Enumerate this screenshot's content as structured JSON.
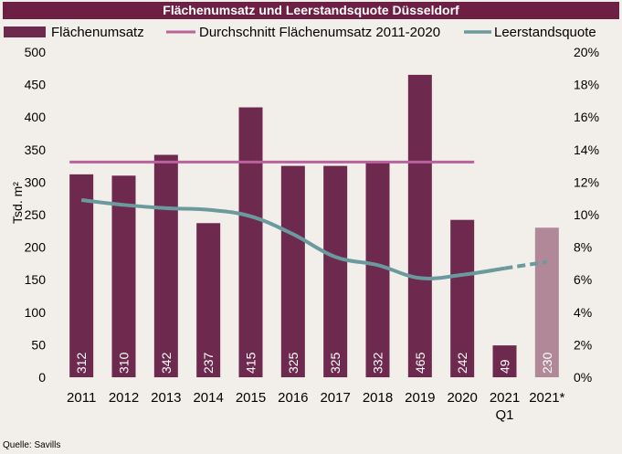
{
  "source": "Quelle: Savills",
  "colors": {
    "bar": "#6e2a4e",
    "bar_forecast": "#b08898",
    "average_line": "#b9629d",
    "vacancy_line": "#6b9a9e",
    "title_bg": "#6e1f44"
  },
  "chart_data": {
    "type": "bar",
    "title": "Flächenumsatz und Leerstandsquote Düsseldorf",
    "categories": [
      "2011",
      "2012",
      "2013",
      "2014",
      "2015",
      "2016",
      "2017",
      "2018",
      "2019",
      "2020",
      "2021 Q1",
      "2021*"
    ],
    "ylabel": "Tsd. m²",
    "ylim": [
      0,
      500
    ],
    "y_ticks": [
      0,
      50,
      100,
      150,
      200,
      250,
      300,
      350,
      400,
      450,
      500
    ],
    "y2lim": [
      0,
      20
    ],
    "y2_ticks": [
      "0%",
      "2%",
      "4%",
      "6%",
      "8%",
      "10%",
      "12%",
      "14%",
      "16%",
      "18%",
      "20%"
    ],
    "grid": false,
    "legend_position": "top",
    "series": [
      {
        "name": "Flächenumsatz",
        "type": "bar",
        "axis": "left",
        "values": [
          312,
          310,
          342,
          237,
          415,
          325,
          325,
          332,
          465,
          242,
          49,
          230
        ],
        "labels": [
          "312",
          "310",
          "342",
          "237",
          "415",
          "325",
          "325",
          "332",
          "465",
          "242",
          "49",
          "230"
        ]
      },
      {
        "name": "Durchschnitt Flächenumsatz 2011-2020",
        "type": "line",
        "axis": "left",
        "value": 331,
        "range": [
          "2011",
          "2020"
        ]
      },
      {
        "name": "Leerstandsquote",
        "type": "line",
        "axis": "right",
        "values": [
          10.9,
          10.6,
          10.4,
          10.3,
          9.9,
          8.8,
          7.4,
          6.9,
          6.1,
          6.3,
          6.7,
          7.1
        ],
        "dashed_from_index": 10
      }
    ]
  }
}
